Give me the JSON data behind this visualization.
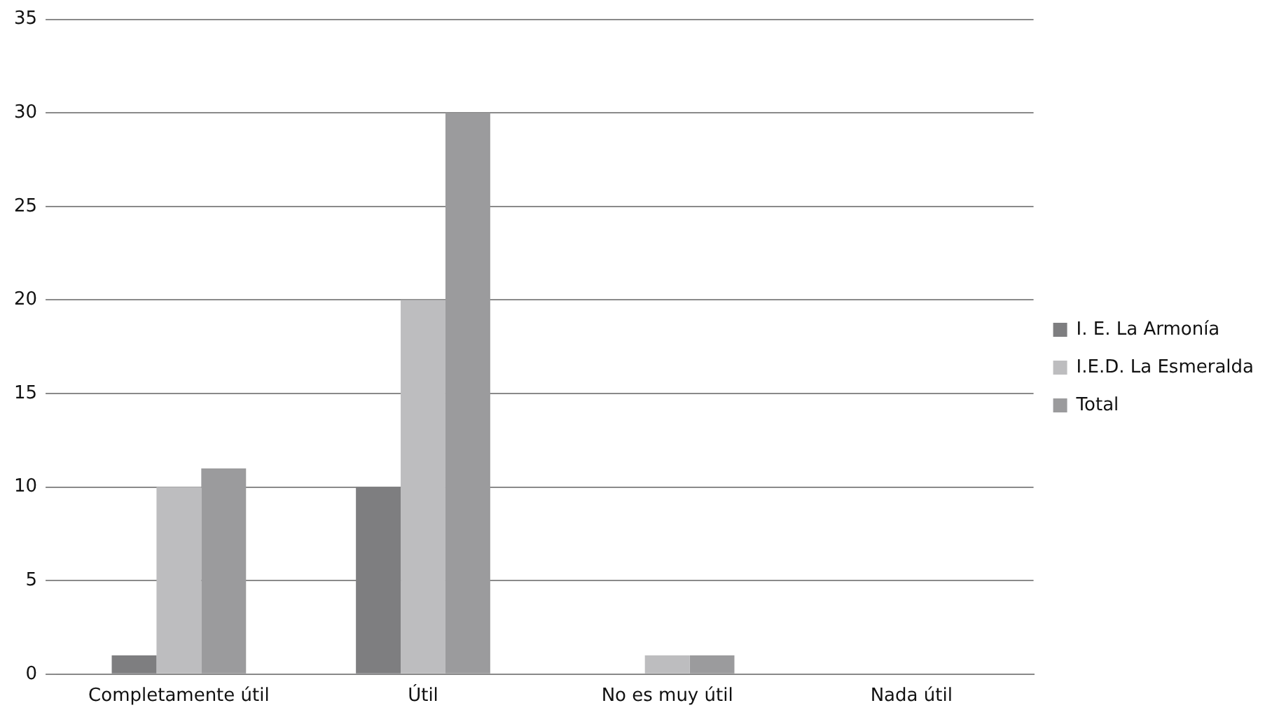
{
  "chart_data": {
    "type": "bar",
    "categories": [
      "Completamente útil",
      "Útil",
      "No es muy útil",
      "Nada útil"
    ],
    "series": [
      {
        "name": "I. E. La Armonía",
        "color": "#7e7e80",
        "values": [
          1,
          10,
          0,
          0
        ]
      },
      {
        "name": "I.E.D. La Esmeralda",
        "color": "#bdbdbf",
        "values": [
          10,
          20,
          1,
          0
        ]
      },
      {
        "name": "Total",
        "color": "#9b9b9d",
        "values": [
          11,
          30,
          1,
          0
        ]
      }
    ],
    "ylim": [
      0,
      35
    ],
    "yticks": [
      0,
      5,
      10,
      15,
      20,
      25,
      30,
      35
    ],
    "grid": "y",
    "legend": "right"
  }
}
